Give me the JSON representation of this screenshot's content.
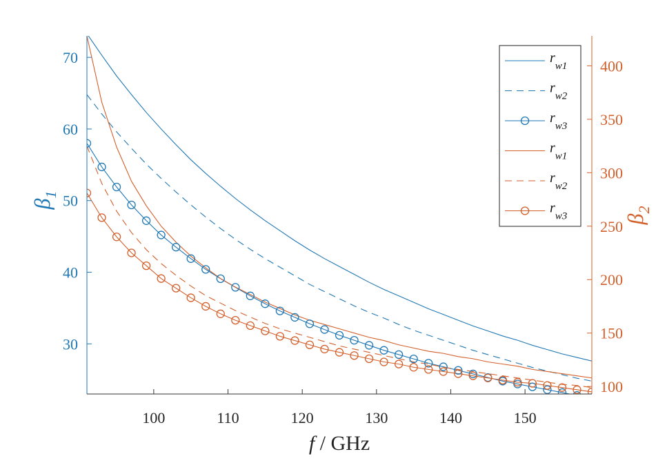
{
  "chart_data": {
    "type": "line",
    "title": "",
    "xlabel": {
      "var": "f",
      "sep": " / ",
      "unit": "GHz"
    },
    "ylabel_left": {
      "sym": "β",
      "sub": "1"
    },
    "ylabel_right": {
      "sym": "β",
      "sub": "2"
    },
    "xlim": [
      91,
      159
    ],
    "ylim_left": [
      23,
      73
    ],
    "ylim_right": [
      93,
      428
    ],
    "x_ticks": [
      100,
      110,
      120,
      130,
      140,
      150
    ],
    "y_left_ticks": [
      30,
      40,
      50,
      60,
      70
    ],
    "y_right_ticks": [
      100,
      150,
      200,
      250,
      300,
      350,
      400
    ],
    "grid": false,
    "legend_position": "top-right",
    "colors": {
      "left": "#1f77b4",
      "right": "#d35f2a"
    },
    "x": [
      91,
      93,
      95,
      97,
      99,
      101,
      103,
      105,
      107,
      109,
      111,
      113,
      115,
      117,
      119,
      121,
      123,
      125,
      127,
      129,
      131,
      133,
      135,
      137,
      139,
      141,
      143,
      145,
      147,
      149,
      151,
      153,
      155,
      157,
      159
    ],
    "series": [
      {
        "name": "r",
        "sub": "w1",
        "axis": "left",
        "style": "solid",
        "marker": "none",
        "values": [
          73.3,
          70.3,
          67.4,
          64.8,
          62.3,
          60.0,
          57.8,
          55.7,
          53.8,
          52.0,
          50.3,
          48.7,
          47.2,
          45.8,
          44.4,
          43.1,
          41.9,
          40.8,
          39.7,
          38.6,
          37.6,
          36.7,
          35.8,
          34.9,
          34.1,
          33.3,
          32.5,
          31.8,
          31.1,
          30.5,
          29.8,
          29.2,
          28.6,
          28.1,
          27.6
        ]
      },
      {
        "name": "r",
        "sub": "w2",
        "axis": "left",
        "style": "dashed",
        "marker": "none",
        "values": [
          64.8,
          62.1,
          59.6,
          57.3,
          55.1,
          53.1,
          51.2,
          49.4,
          47.7,
          46.1,
          44.6,
          43.2,
          41.9,
          40.7,
          39.5,
          38.3,
          37.3,
          36.3,
          35.3,
          34.4,
          33.6,
          32.7,
          31.9,
          31.2,
          30.5,
          29.8,
          29.1,
          28.5,
          27.9,
          27.3,
          26.7,
          26.2,
          25.7,
          25.2,
          24.8
        ]
      },
      {
        "name": "r",
        "sub": "w3",
        "axis": "left",
        "style": "solid",
        "marker": "circle",
        "values": [
          58.0,
          54.7,
          51.9,
          49.4,
          47.2,
          45.2,
          43.5,
          41.9,
          40.4,
          39.1,
          37.9,
          36.7,
          35.6,
          34.6,
          33.7,
          32.8,
          32.0,
          31.2,
          30.5,
          29.8,
          29.1,
          28.5,
          27.9,
          27.3,
          26.8,
          26.3,
          25.8,
          25.3,
          24.8,
          24.4,
          24.0,
          23.6,
          23.2,
          22.8,
          22.5
        ]
      },
      {
        "name": "r",
        "sub": "w1",
        "axis": "right",
        "style": "solid",
        "marker": "none",
        "values": [
          428,
          366,
          324,
          292,
          269,
          250,
          235,
          222,
          211,
          201,
          193,
          186,
          179,
          173,
          167,
          162,
          158,
          154,
          150,
          146,
          143,
          139,
          136,
          133,
          131,
          128,
          126,
          123,
          121,
          119,
          116,
          114,
          112,
          110,
          108
        ]
      },
      {
        "name": "r",
        "sub": "w2",
        "axis": "right",
        "style": "dashed",
        "marker": "none",
        "values": [
          325,
          290,
          264,
          244,
          228,
          215,
          204,
          194,
          185,
          178,
          171,
          165,
          159,
          154,
          150,
          146,
          142,
          138,
          135,
          132,
          129,
          126,
          123,
          121,
          118,
          116,
          114,
          112,
          110,
          108,
          106,
          104,
          102,
          101,
          99
        ]
      },
      {
        "name": "r",
        "sub": "w3",
        "axis": "right",
        "style": "solid",
        "marker": "circle",
        "values": [
          281,
          258,
          240,
          225,
          213,
          201,
          192,
          183,
          175,
          168,
          162,
          157,
          152,
          147,
          143,
          139,
          135,
          132,
          129,
          126,
          123,
          121,
          118,
          116,
          114,
          112,
          110,
          108,
          106,
          104,
          103,
          101,
          99,
          97,
          95
        ]
      }
    ]
  }
}
